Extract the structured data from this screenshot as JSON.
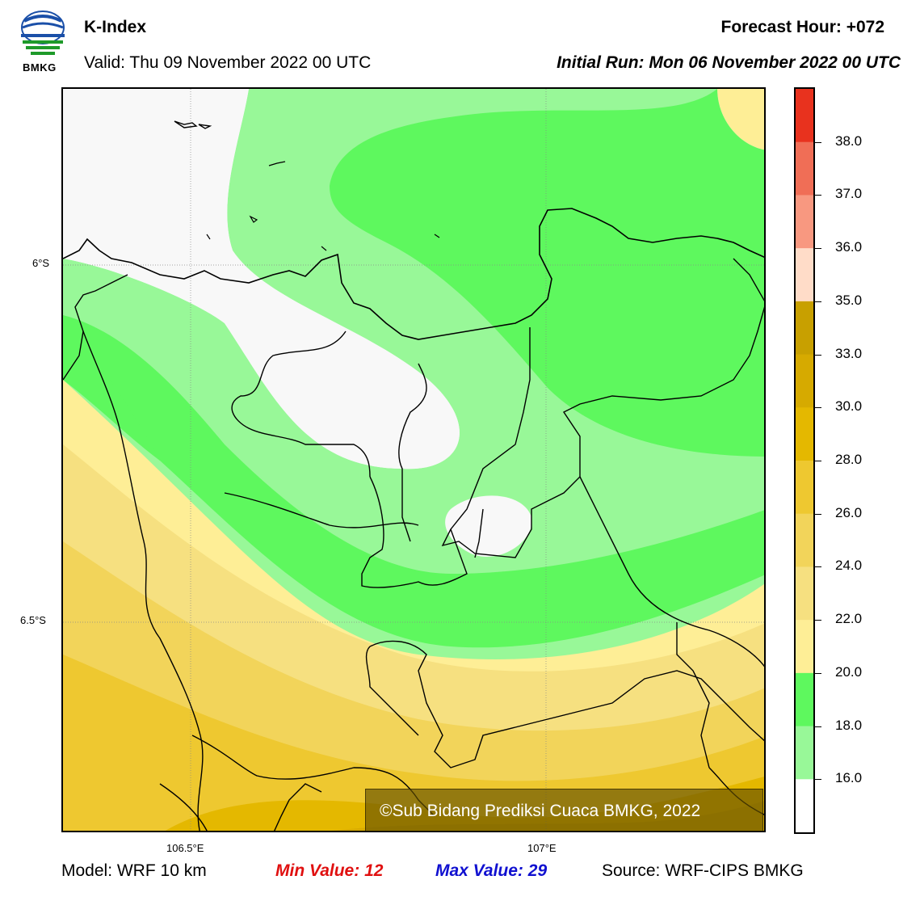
{
  "header": {
    "logo_text": "BMKG",
    "title": "K-Index",
    "valid": "Valid: Thu 09 November 2022 00 UTC",
    "forecast_hour": "Forecast Hour: +072",
    "initial_run": "Initial Run: Mon 06 November 2022 00 UTC"
  },
  "map": {
    "lat_labels": [
      "6°S",
      "6.5°S"
    ],
    "lon_labels": [
      "106.5°E",
      "107°E"
    ],
    "copyright": "©Sub Bidang Prediksi Cuaca BMKG, 2022"
  },
  "colorbar": {
    "labels": [
      "38.0",
      "37.0",
      "36.0",
      "35.0",
      "33.0",
      "30.0",
      "28.0",
      "26.0",
      "24.0",
      "22.0",
      "20.0",
      "18.0",
      "16.0"
    ],
    "colors": [
      "#e8321e",
      "#f06e56",
      "#f89880",
      "#ffdcc8",
      "#c8a000",
      "#d6aa00",
      "#e4b800",
      "#eec830",
      "#f2d45a",
      "#f6e080",
      "#feee96",
      "#5ef85e",
      "#98f898",
      "#ffffff"
    ]
  },
  "footer": {
    "model": "Model: WRF 10 km",
    "min_value": "Min Value: 12",
    "max_value": "Max Value: 29",
    "source": "Source: WRF-CIPS BMKG"
  }
}
